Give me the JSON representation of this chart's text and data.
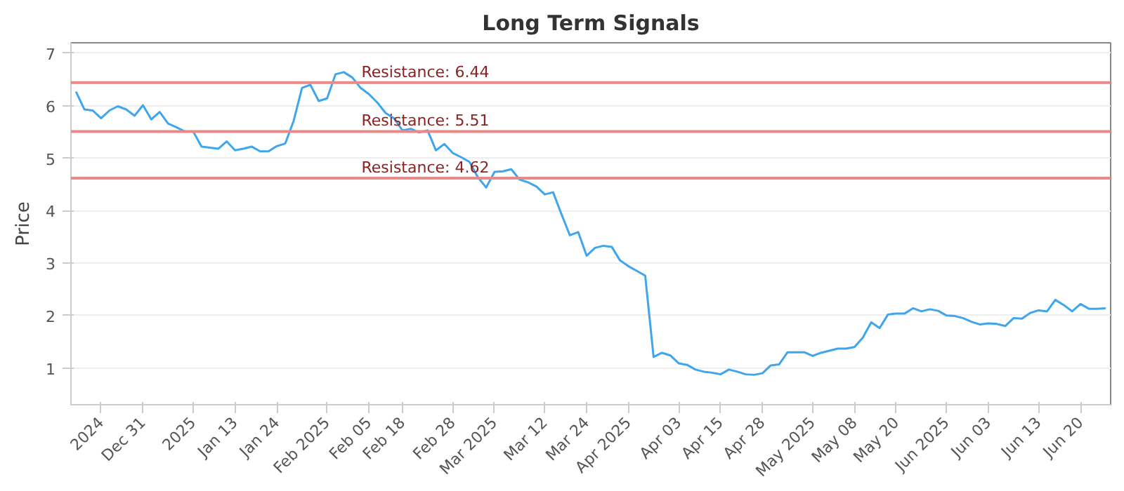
{
  "chart_data": {
    "type": "line",
    "title": "Long Term Signals",
    "ylabel": "Price",
    "categories": [
      null,
      null,
      null,
      "2024",
      null,
      null,
      null,
      null,
      "Dec 31",
      null,
      null,
      null,
      null,
      null,
      "2025",
      null,
      null,
      null,
      null,
      "Jan 13",
      null,
      null,
      null,
      null,
      "Jan 24",
      null,
      null,
      null,
      null,
      null,
      "Feb 2025",
      null,
      null,
      null,
      null,
      "Feb 05",
      null,
      null,
      null,
      "Feb 18",
      null,
      null,
      null,
      null,
      null,
      "Feb 28",
      null,
      null,
      null,
      null,
      "Mar 2025",
      null,
      null,
      null,
      null,
      null,
      "Mar 12",
      null,
      null,
      null,
      null,
      "Mar 24",
      null,
      null,
      null,
      null,
      "Apr 2025",
      null,
      null,
      null,
      null,
      null,
      "Apr 03",
      null,
      null,
      null,
      null,
      "Apr 15",
      null,
      null,
      null,
      null,
      "Apr 28",
      null,
      null,
      null,
      null,
      null,
      "May 2025",
      null,
      null,
      null,
      null,
      "May 08",
      null,
      null,
      null,
      null,
      "May 20",
      null,
      null,
      null,
      null,
      null,
      "Jun 2025",
      null,
      null,
      null,
      null,
      "Jun 03",
      null,
      null,
      null,
      null,
      null,
      "Jun 13",
      null,
      null,
      null,
      null,
      "Jun 20",
      null,
      null,
      null
    ],
    "series": [
      {
        "color": "#3fa5ec",
        "values": [
          6.27,
          5.93,
          5.91,
          5.76,
          5.91,
          5.99,
          5.93,
          5.81,
          6.01,
          5.74,
          5.88,
          5.66,
          5.59,
          5.51,
          5.51,
          5.22,
          5.2,
          5.18,
          5.32,
          5.15,
          5.18,
          5.22,
          5.13,
          5.13,
          5.23,
          5.28,
          5.71,
          6.34,
          6.4,
          6.09,
          6.14,
          6.6,
          6.64,
          6.54,
          6.34,
          6.22,
          6.06,
          5.86,
          5.76,
          5.53,
          5.56,
          5.49,
          5.53,
          5.15,
          5.27,
          5.1,
          5.02,
          4.93,
          4.64,
          4.44,
          4.74,
          4.75,
          4.79,
          4.59,
          4.54,
          4.46,
          4.31,
          4.35,
          3.93,
          3.53,
          3.59,
          3.14,
          3.29,
          3.33,
          3.31,
          3.05,
          2.94,
          2.85,
          2.76,
          1.21,
          1.29,
          1.24,
          1.09,
          1.06,
          0.97,
          0.93,
          0.91,
          0.88,
          0.97,
          0.93,
          0.88,
          0.87,
          0.9,
          1.05,
          1.07,
          1.3,
          1.3,
          1.3,
          1.23,
          1.29,
          1.33,
          1.37,
          1.37,
          1.4,
          1.58,
          1.87,
          1.76,
          2.02,
          2.04,
          2.04,
          2.14,
          2.08,
          2.12,
          2.09,
          2.0,
          1.99,
          1.95,
          1.88,
          1.83,
          1.85,
          1.84,
          1.8,
          1.95,
          1.94,
          2.05,
          2.1,
          2.08,
          2.3,
          2.2,
          2.08,
          2.22,
          2.13,
          2.13,
          2.14
        ]
      }
    ],
    "ylim": [
      0.3,
      7.2
    ],
    "yticks": [
      1,
      2,
      3,
      4,
      5,
      6,
      7
    ],
    "grid": "y",
    "marker": "none",
    "line_style": "solid",
    "ref_lines": [
      {
        "axis": "y",
        "value": 6.44,
        "label": "Resistance: 6.44",
        "color": "#e88a8a"
      },
      {
        "axis": "y",
        "value": 5.51,
        "label": "Resistance: 5.51",
        "color": "#e88a8a"
      },
      {
        "axis": "y",
        "value": 4.62,
        "label": "Resistance: 4.62",
        "color": "#e88a8a"
      }
    ]
  }
}
